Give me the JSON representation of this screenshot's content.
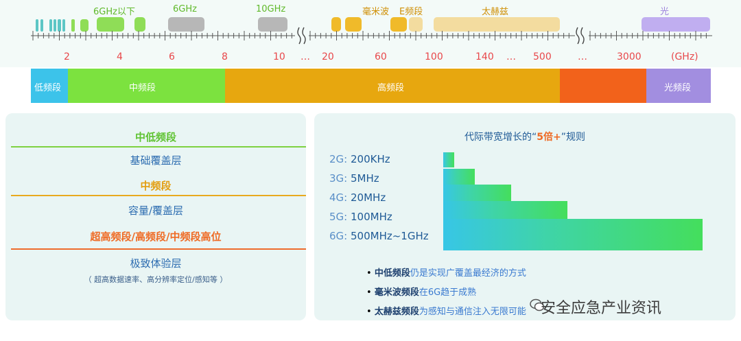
{
  "top_labels": [
    "6GHz以下",
    "6GHz",
    "10GHz",
    "毫米波",
    "E频段",
    "太赫兹",
    "光"
  ],
  "ticks": [
    "2",
    "4",
    "6",
    "8",
    "10",
    "…",
    "20",
    "60",
    "100",
    "140",
    "…",
    "500",
    "…",
    "3000",
    "(GHz)"
  ],
  "bands": [
    "低频段",
    "中频段",
    "高频段",
    "",
    "光频段"
  ],
  "colors": {
    "low": "#3cc3ea",
    "mid": "#7ce23f",
    "high": "#e7a70f",
    "ultra": "#f2621b",
    "optical": "#a28ee0",
    "teal": "#5cc6c5",
    "green_block": "#8fdd57",
    "gray_block": "#b7b7b7",
    "orange_block": "#f0ba2a",
    "beige_block": "#f3dc9f",
    "purple_block": "#c0aef0"
  },
  "left_panel": {
    "l1_title": "中低频段",
    "l1_name": "基础覆盖层",
    "l2_title": "中频段",
    "l2_name": "容量/覆盖层",
    "l3_title": "超高频段/高频段/中频段高位",
    "l3_name": "极致体验层",
    "l3_note": "（ 超高数据速率、高分辨率定位/感知等 ）"
  },
  "right_panel": {
    "title_prefix": "代际带宽增长的“",
    "title_highlight": "5倍+",
    "title_suffix": "”规则",
    "generations": [
      {
        "gen": "2G:",
        "bw": "200KHz"
      },
      {
        "gen": "3G:",
        "bw": "5MHz"
      },
      {
        "gen": "4G:",
        "bw": "20MHz"
      },
      {
        "gen": "5G:",
        "bw": "100MHz"
      },
      {
        "gen": "6G:",
        "bw": "500MHz~1GHz"
      }
    ],
    "bullets": [
      {
        "key": "中低频段",
        "rest": "仍是实现广覆盖最经济的方式"
      },
      {
        "key": "毫米波频段",
        "rest": "在6G趋于成熟"
      },
      {
        "key": "太赫兹频段",
        "rest": "为感知与通信注入无限可能"
      }
    ]
  },
  "watermark": "安全应急产业资讯"
}
